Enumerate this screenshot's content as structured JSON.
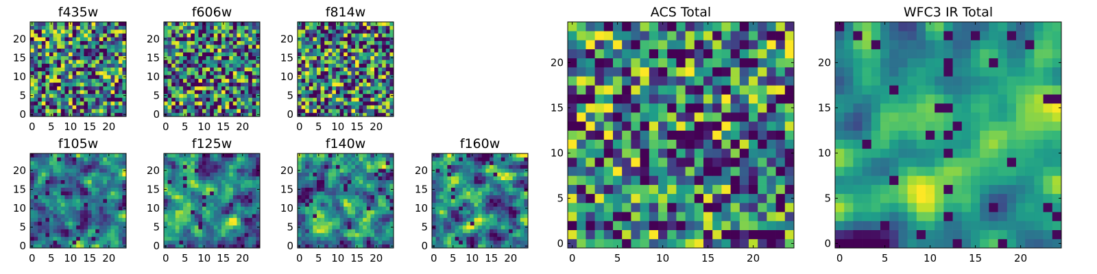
{
  "chart_data": [
    {
      "type": "heatmap",
      "title": "f435w",
      "grid_size": 25,
      "seed": 11,
      "blur": 0,
      "x_ticks": [
        0,
        5,
        10,
        15,
        20
      ],
      "y_ticks": [
        0,
        5,
        10,
        15,
        20
      ],
      "xlim": [
        -0.5,
        24.5
      ],
      "ylim": [
        -0.5,
        24.5
      ],
      "colormap": "viridis",
      "grid": false
    },
    {
      "type": "heatmap",
      "title": "f606w",
      "grid_size": 25,
      "seed": 23,
      "blur": 0,
      "x_ticks": [
        0,
        5,
        10,
        15,
        20
      ],
      "y_ticks": [
        0,
        5,
        10,
        15,
        20
      ],
      "xlim": [
        -0.5,
        24.5
      ],
      "ylim": [
        -0.5,
        24.5
      ],
      "colormap": "viridis",
      "grid": false
    },
    {
      "type": "heatmap",
      "title": "f814w",
      "grid_size": 25,
      "seed": 37,
      "blur": 0,
      "x_ticks": [
        0,
        5,
        10,
        15,
        20
      ],
      "y_ticks": [
        0,
        5,
        10,
        15,
        20
      ],
      "xlim": [
        -0.5,
        24.5
      ],
      "ylim": [
        -0.5,
        24.5
      ],
      "colormap": "viridis",
      "grid": false
    },
    {
      "type": "heatmap",
      "title": "f105w",
      "grid_size": 25,
      "seed": 41,
      "blur": 1,
      "x_ticks": [
        0,
        5,
        10,
        15,
        20
      ],
      "y_ticks": [
        0,
        5,
        10,
        15,
        20
      ],
      "xlim": [
        -0.5,
        24.5
      ],
      "ylim": [
        -0.5,
        24.5
      ],
      "colormap": "viridis",
      "grid": false
    },
    {
      "type": "heatmap",
      "title": "f125w",
      "grid_size": 25,
      "seed": 53,
      "blur": 1,
      "x_ticks": [
        0,
        5,
        10,
        15,
        20
      ],
      "y_ticks": [
        0,
        5,
        10,
        15,
        20
      ],
      "xlim": [
        -0.5,
        24.5
      ],
      "ylim": [
        -0.5,
        24.5
      ],
      "colormap": "viridis",
      "grid": false
    },
    {
      "type": "heatmap",
      "title": "f140w",
      "grid_size": 25,
      "seed": 67,
      "blur": 1,
      "x_ticks": [
        0,
        5,
        10,
        15,
        20
      ],
      "y_ticks": [
        0,
        5,
        10,
        15,
        20
      ],
      "xlim": [
        -0.5,
        24.5
      ],
      "ylim": [
        -0.5,
        24.5
      ],
      "colormap": "viridis",
      "grid": false
    },
    {
      "type": "heatmap",
      "title": "f160w",
      "grid_size": 25,
      "seed": 71,
      "blur": 1,
      "x_ticks": [
        0,
        5,
        10,
        15,
        20
      ],
      "y_ticks": [
        0,
        5,
        10,
        15,
        20
      ],
      "xlim": [
        -0.5,
        24.5
      ],
      "ylim": [
        -0.5,
        24.5
      ],
      "colormap": "viridis",
      "grid": false
    },
    {
      "type": "heatmap",
      "title": "ACS Total",
      "grid_size": 25,
      "seed": 83,
      "blur": 0,
      "x_ticks": [
        0,
        5,
        10,
        15,
        20
      ],
      "y_ticks": [
        0,
        5,
        10,
        15,
        20
      ],
      "xlim": [
        -0.5,
        24.5
      ],
      "ylim": [
        -0.5,
        24.5
      ],
      "colormap": "viridis",
      "grid": false
    },
    {
      "type": "heatmap",
      "title": "WFC3 IR Total",
      "grid_size": 25,
      "seed": 97,
      "blur": 2,
      "x_ticks": [
        0,
        5,
        10,
        15,
        20
      ],
      "y_ticks": [
        0,
        5,
        10,
        15,
        20
      ],
      "xlim": [
        -0.5,
        24.5
      ],
      "ylim": [
        -0.5,
        24.5
      ],
      "colormap": "viridis",
      "grid": false
    }
  ]
}
